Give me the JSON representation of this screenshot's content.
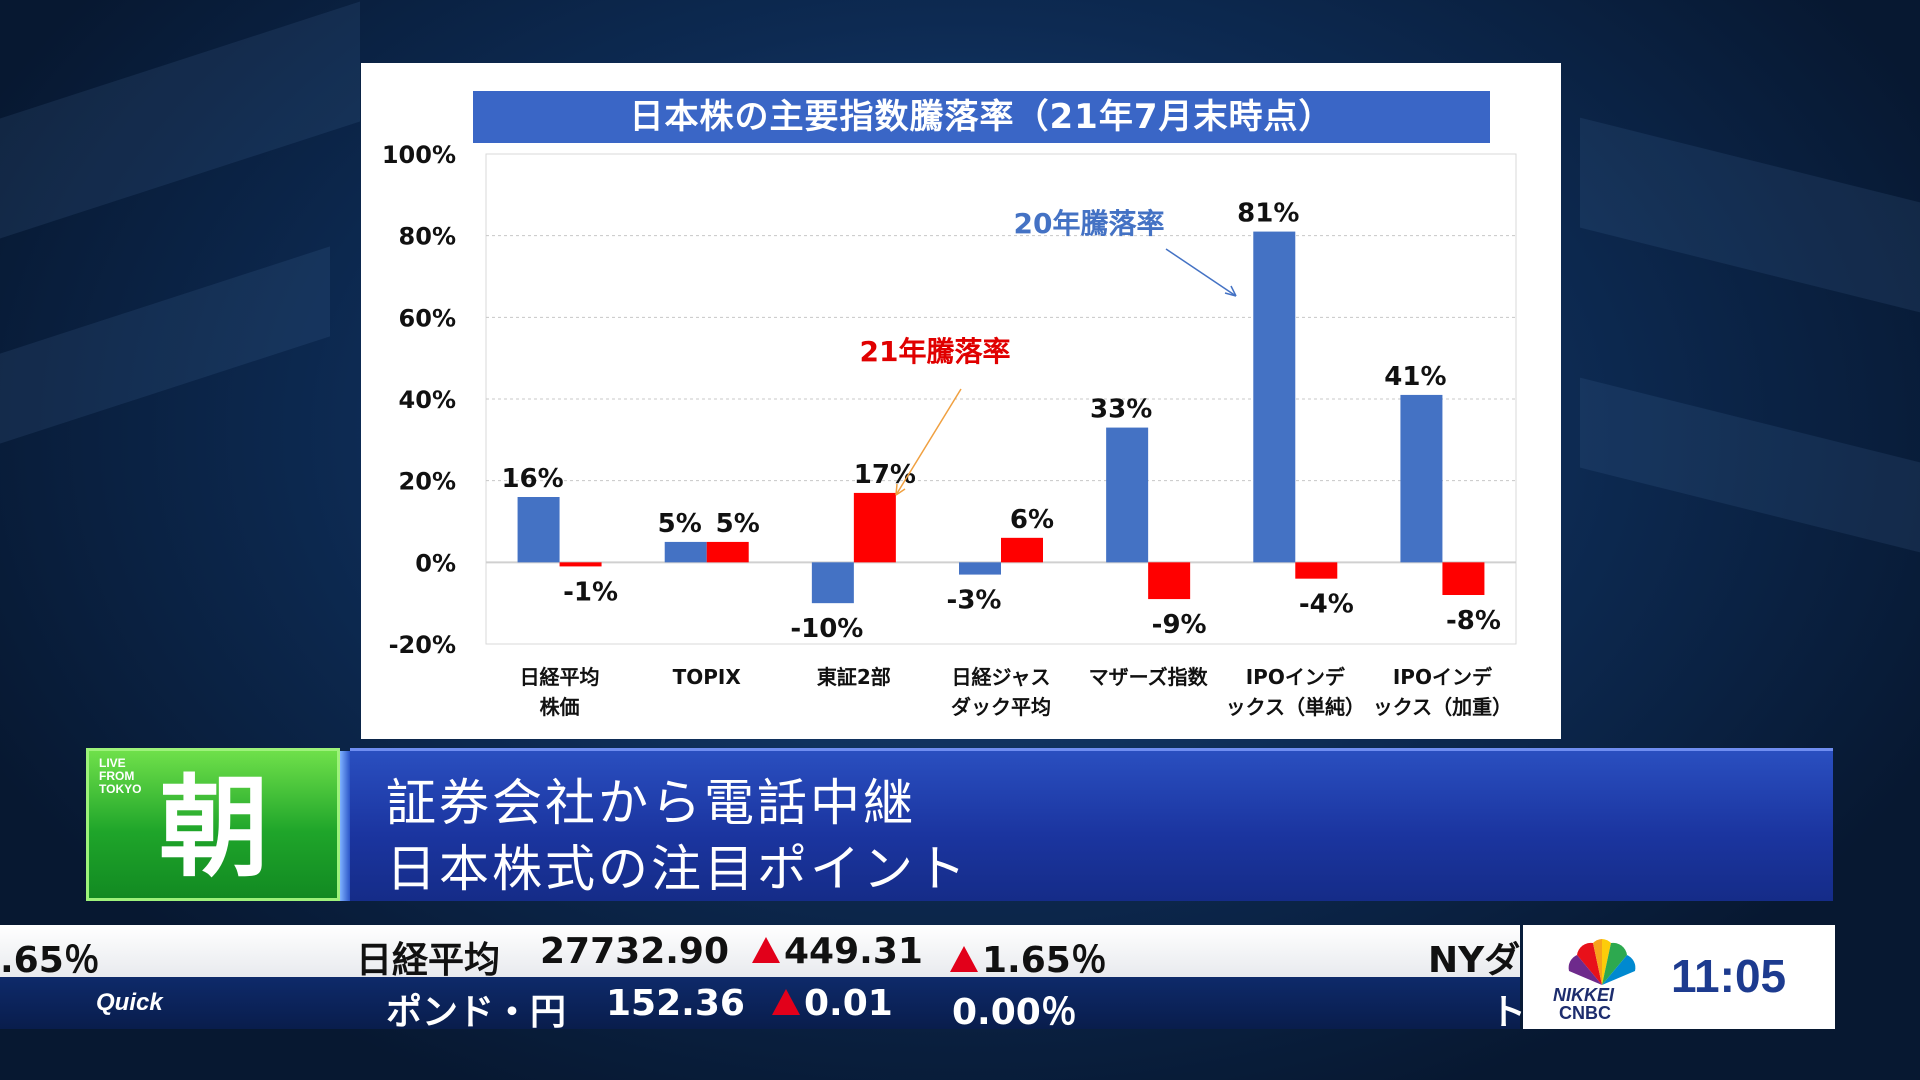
{
  "chart_data": {
    "type": "bar",
    "title": "日本株の主要指数騰落率（21年7月末時点）",
    "categories": [
      [
        "日経平均",
        "株価"
      ],
      [
        "TOPIX"
      ],
      [
        "東証2部"
      ],
      [
        "日経ジャス",
        "ダック平均"
      ],
      [
        "マザーズ指数"
      ],
      [
        "IPOインデ",
        "ックス（単純）"
      ],
      [
        "IPOインデ",
        "ックス（加重）"
      ]
    ],
    "series": [
      {
        "name": "20年騰落率",
        "color": "#4472c4",
        "values": [
          16,
          5,
          -10,
          -3,
          33,
          81,
          41
        ],
        "labels": [
          "16%",
          "5%",
          "-10%",
          "-3%",
          "33%",
          "81%",
          "41%"
        ]
      },
      {
        "name": "21年騰落率",
        "color": "#ff0000",
        "values": [
          -1,
          5,
          17,
          6,
          -9,
          -4,
          -8
        ],
        "labels": [
          "-1%",
          "5%",
          "17%",
          "6%",
          "-9%",
          "-4%",
          "-8%"
        ]
      }
    ],
    "yticks": [
      "100%",
      "80%",
      "60%",
      "40%",
      "20%",
      "0%",
      "-20%"
    ],
    "ylim": [
      -20,
      100
    ],
    "grid": true
  },
  "annotations": {
    "series20": "20年騰落率",
    "series21": "21年騰落率"
  },
  "lower_third": {
    "live_label": "LIVE\nFROM\nTOKYO",
    "program": "朝",
    "headline_1": "証券会社から電話中継",
    "headline_2": "日本株式の注目ポイント"
  },
  "ticker": {
    "top_left_fragment": ".65％",
    "nikkei_label": "日経平均",
    "nikkei_value": "27732.90",
    "nikkei_change": "449.31",
    "nikkei_pct": "1.65％",
    "top_right_fragment": "NYダ",
    "quick_label": "Quick",
    "gbp_label": "ポンド・円",
    "gbp_value": "152.36",
    "gbp_change": "0.01",
    "gbp_pct": "0.00％",
    "bottom_right_fragment": "ト"
  },
  "branding": {
    "nikkei": "NIKKEI",
    "cnbc": "CNBC",
    "clock": "11:05"
  }
}
